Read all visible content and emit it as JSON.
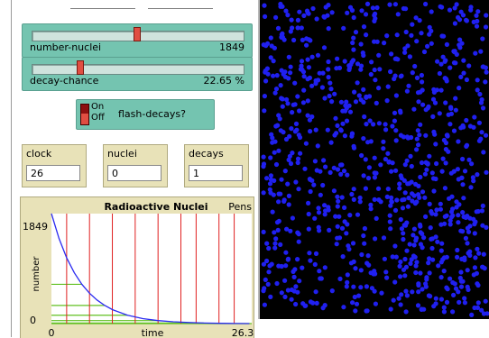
{
  "sliders": [
    {
      "name": "number-nuclei",
      "value": "1849",
      "level": 0.5
    },
    {
      "name": "decay-chance",
      "value": "22.65 %",
      "level": 0.23
    }
  ],
  "switch": {
    "on_label": "On",
    "off_label": "Off",
    "label": "flash-decays?",
    "state": "off"
  },
  "monitors": [
    {
      "name": "clock",
      "value": "26"
    },
    {
      "name": "nuclei",
      "value": "0"
    },
    {
      "name": "decays",
      "value": "1"
    }
  ],
  "plot": {
    "title": "Radioactive Nuclei",
    "pens_label": "Pens",
    "ylabel": "number",
    "xlabel": "time",
    "x_min_label": "0",
    "x_max_label": "26.3",
    "y_min_label": "0",
    "y_max_label": "1849"
  },
  "chart_data": {
    "type": "line",
    "title": "Radioactive Nuclei",
    "xlabel": "time",
    "ylabel": "number",
    "xlim": [
      0,
      26.3
    ],
    "ylim": [
      0,
      1849
    ],
    "series": [
      {
        "color": "#2a2af0",
        "x": [
          0,
          1,
          2,
          3,
          4,
          5,
          6,
          7,
          8,
          10,
          12,
          14,
          16,
          18,
          20,
          22,
          24,
          26
        ],
        "y": [
          1849,
          1430,
          1105,
          855,
          660,
          510,
          395,
          305,
          235,
          140,
          84,
          50,
          30,
          18,
          10,
          5,
          2,
          0
        ]
      }
    ],
    "red_markers_x": [
      2,
      5,
      8,
      11,
      14,
      17,
      19,
      22,
      24
    ],
    "green_levels": [
      {
        "y": 660,
        "x_end": 4
      },
      {
        "y": 305,
        "x_end": 7
      },
      {
        "y": 140,
        "x_end": 10
      },
      {
        "y": 50,
        "x_end": 14
      },
      {
        "y": 10,
        "x_end": 20
      },
      {
        "y": 0,
        "x_end": 26.3
      }
    ],
    "grid": false
  },
  "colors": {
    "widget_teal": "#74c4b0",
    "monitor_bg": "#e8e2b8",
    "world_bg": "#000000",
    "nucleus": "#2020f0",
    "decay_line": "#e02020",
    "level_line": "#60c020"
  },
  "world": {
    "nuclei_shown": 900
  }
}
